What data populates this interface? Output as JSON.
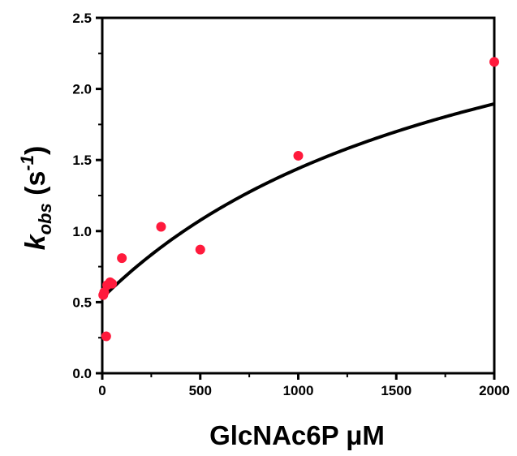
{
  "chart_data": {
    "type": "scatter",
    "title": "",
    "xlabel": "GlcNAc6P μM",
    "ylabel": {
      "base": "k",
      "sub": "obs",
      "unit_open": " (s",
      "unit_sup": "-1",
      "unit_close": ")"
    },
    "xlim": [
      0,
      2000
    ],
    "ylim": [
      0,
      2.5
    ],
    "x_ticks": [
      0,
      500,
      1000,
      1500,
      2000
    ],
    "x_tick_labels": [
      "0",
      "500",
      "1000",
      "1500",
      "2000"
    ],
    "y_ticks": [
      0,
      0.5,
      1.0,
      1.5,
      2.0,
      2.5
    ],
    "y_tick_labels": [
      "0.0",
      "0.5",
      "1.0",
      "1.5",
      "2.0",
      "2.5"
    ],
    "grid": false,
    "legend": "none",
    "series": [
      {
        "kind": "points",
        "color": "#ff1a3c",
        "x": [
          5,
          10,
          20,
          25,
          40,
          50,
          100,
          300,
          500,
          1000,
          2000
        ],
        "y": [
          0.55,
          0.57,
          0.26,
          0.62,
          0.64,
          0.63,
          0.81,
          1.03,
          0.87,
          1.53,
          2.19
        ]
      },
      {
        "kind": "fit",
        "color": "#000000",
        "model": "hyperbolic",
        "k0": 0.53,
        "amplitude": 2.73,
        "K": 2000
      }
    ]
  }
}
